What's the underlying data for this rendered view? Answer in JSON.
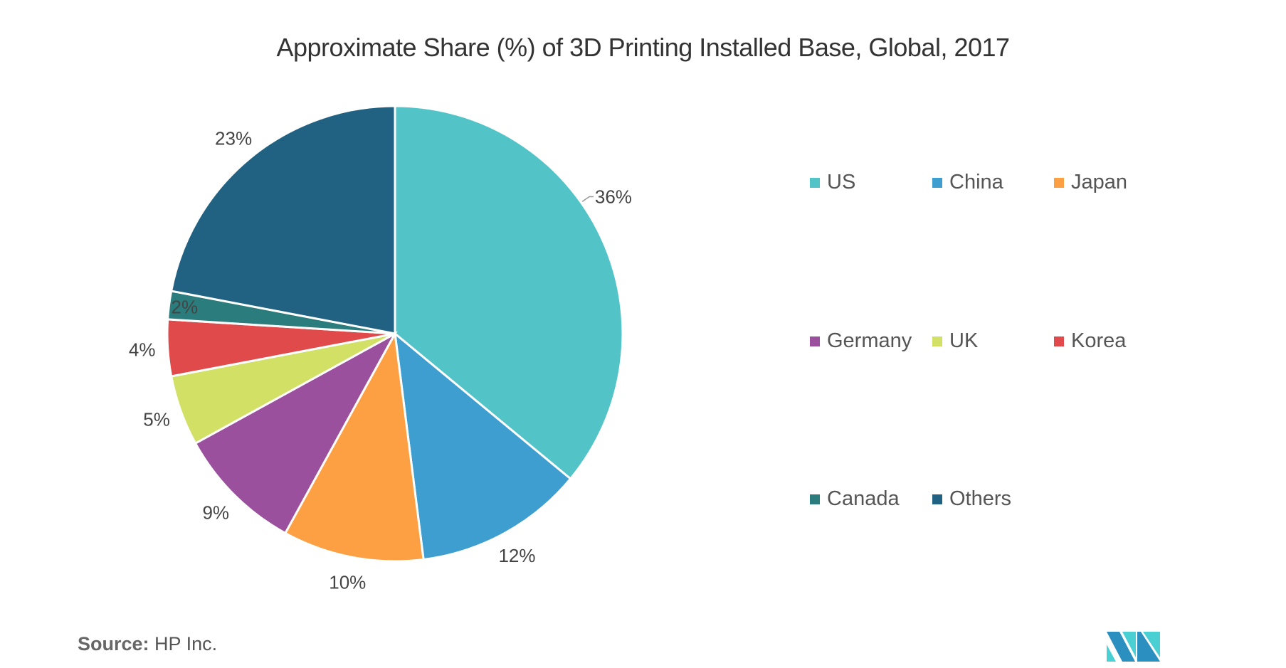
{
  "chart_data": {
    "type": "pie",
    "title": "Approximate Share (%) of 3D Printing Installed Base, Global, 2017",
    "slices": [
      {
        "label": "US",
        "value": 36,
        "display": "36%",
        "color": "#52c4c8"
      },
      {
        "label": "China",
        "value": 12,
        "display": "12%",
        "color": "#3d9ecf"
      },
      {
        "label": "Japan",
        "value": 10,
        "display": "10%",
        "color": "#fd9f43"
      },
      {
        "label": "Germany",
        "value": 9,
        "display": "9%",
        "color": "#9b509e"
      },
      {
        "label": "UK",
        "value": 5,
        "display": "5%",
        "color": "#d2e066"
      },
      {
        "label": "Korea",
        "value": 4,
        "display": "4%",
        "color": "#e04a4b"
      },
      {
        "label": "Canada",
        "value": 2,
        "display": "2%",
        "color": "#2a7d7c"
      },
      {
        "label": "Others",
        "value": 23,
        "display": "23%",
        "color": "#216282"
      }
    ],
    "legend_position": "right"
  },
  "source": {
    "label": "Source:",
    "value": "HP Inc."
  }
}
